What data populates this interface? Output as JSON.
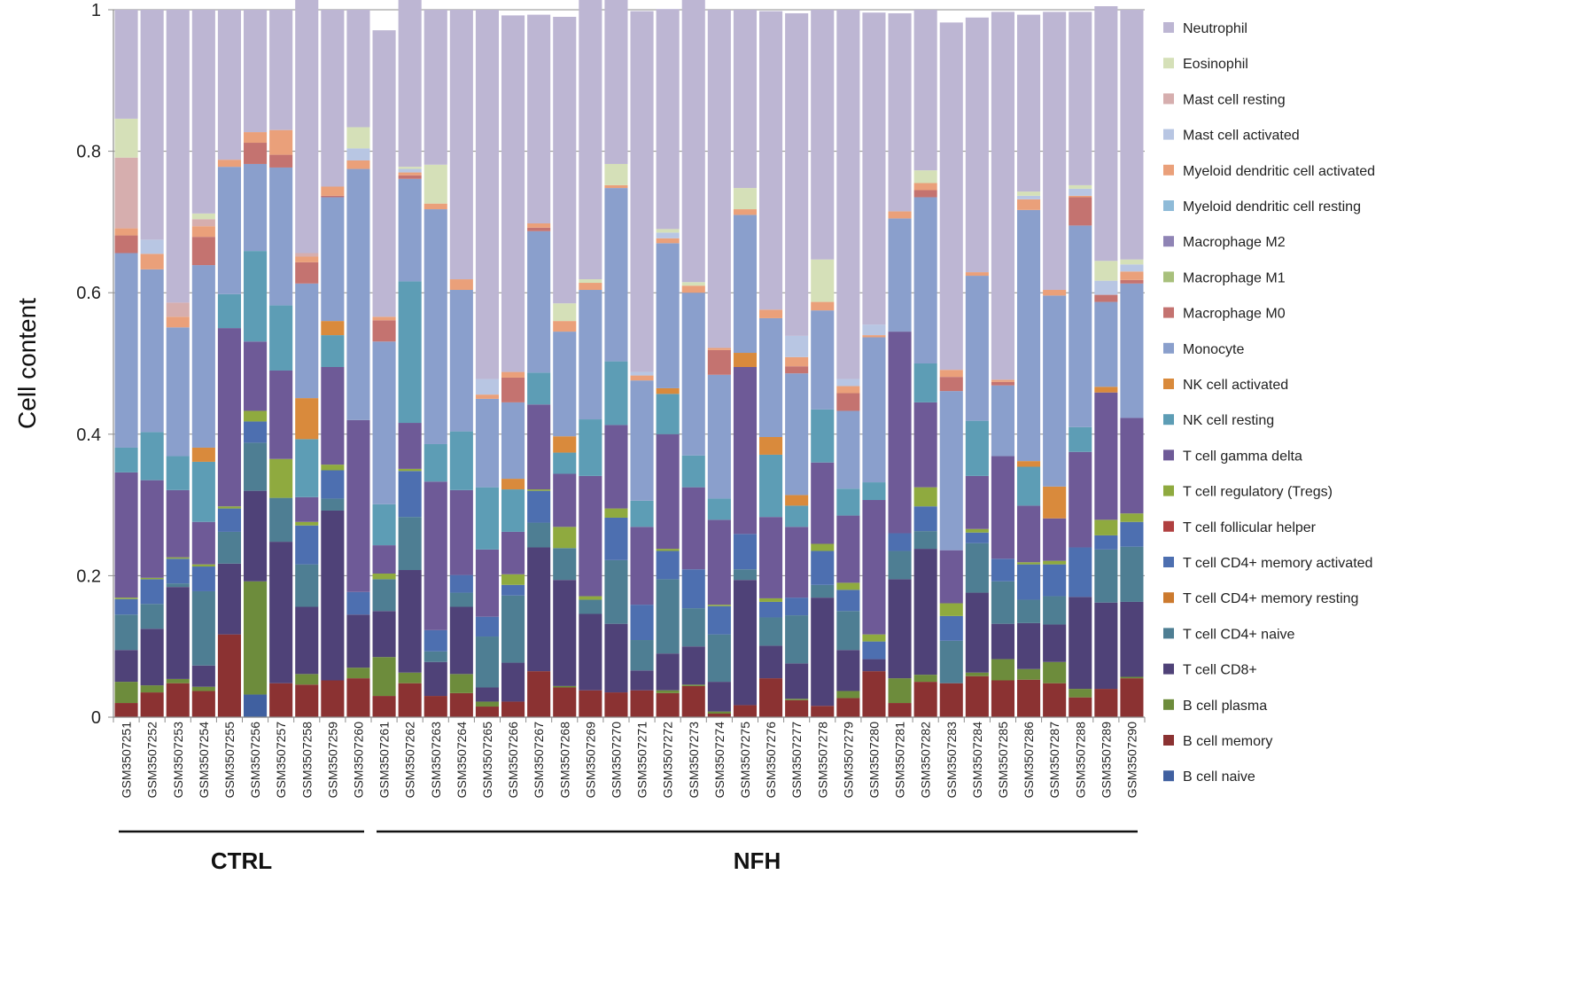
{
  "chart_data": {
    "type": "bar",
    "stacked": true,
    "ylabel": "Cell content",
    "ylim": [
      0,
      1
    ],
    "yticks": [
      0,
      0.2,
      0.4,
      0.6,
      0.8,
      1
    ],
    "grid": true,
    "legend_position": "right",
    "categories": [
      "GSM3507251",
      "GSM3507252",
      "GSM3507253",
      "GSM3507254",
      "GSM3507255",
      "GSM3507256",
      "GSM3507257",
      "GSM3507258",
      "GSM3507259",
      "GSM3507260",
      "GSM3507261",
      "GSM3507262",
      "GSM3507263",
      "GSM3507264",
      "GSM3507265",
      "GSM3507266",
      "GSM3507267",
      "GSM3507268",
      "GSM3507269",
      "GSM3507270",
      "GSM3507271",
      "GSM3507272",
      "GSM3507273",
      "GSM3507274",
      "GSM3507275",
      "GSM3507276",
      "GSM3507277",
      "GSM3507278",
      "GSM3507279",
      "GSM3507280",
      "GSM3507281",
      "GSM3507282",
      "GSM3507283",
      "GSM3507284",
      "GSM3507285",
      "GSM3507286",
      "GSM3507287",
      "GSM3507288",
      "GSM3507289",
      "GSM3507290"
    ],
    "groups": [
      {
        "label": "CTRL",
        "start": 0,
        "end": 9
      },
      {
        "label": "NFH",
        "start": 10,
        "end": 39
      }
    ],
    "series": [
      {
        "name": "B cell naive",
        "color": "#4060a0",
        "values": [
          0,
          0,
          0,
          0,
          0,
          0.032,
          0,
          0,
          0,
          0,
          0,
          0,
          0,
          0,
          0,
          0,
          0,
          0,
          0,
          0,
          0,
          0,
          0,
          0,
          0,
          0,
          0,
          0,
          0,
          0,
          0,
          0,
          0,
          0,
          0,
          0,
          0,
          0,
          0,
          0
        ]
      },
      {
        "name": "B cell memory",
        "color": "#8b3232",
        "values": [
          0.02,
          0.035,
          0.048,
          0.037,
          0.117,
          0,
          0.048,
          0.046,
          0.052,
          0.055,
          0.03,
          0.048,
          0.03,
          0.034,
          0.015,
          0.022,
          0.065,
          0.042,
          0.038,
          0.035,
          0.038,
          0.034,
          0.044,
          0.005,
          0.017,
          0.055,
          0.024,
          0.016,
          0.027,
          0.065,
          0.02,
          0.05,
          0.048,
          0.058,
          0.052,
          0.053,
          0.048,
          0.028,
          0.04,
          0.055
        ]
      },
      {
        "name": "B cell plasma",
        "color": "#6d8c3c",
        "values": [
          0.03,
          0.01,
          0.006,
          0.006,
          0,
          0.16,
          0,
          0.015,
          0,
          0.015,
          0.055,
          0.015,
          0,
          0.027,
          0.007,
          0,
          0,
          0.002,
          0,
          0,
          0,
          0.004,
          0.002,
          0.003,
          0,
          0,
          0.002,
          0,
          0.01,
          0,
          0.035,
          0.01,
          0,
          0.005,
          0.03,
          0.015,
          0.03,
          0.012,
          0,
          0.002
        ]
      },
      {
        "name": "T cell CD8+",
        "color": "#4f4278",
        "values": [
          0.045,
          0.08,
          0.13,
          0.03,
          0.1,
          0.128,
          0.2,
          0.095,
          0.24,
          0.075,
          0.065,
          0.145,
          0.048,
          0.095,
          0.02,
          0.055,
          0.175,
          0.15,
          0.108,
          0.097,
          0.028,
          0.052,
          0.054,
          0.042,
          0.177,
          0.046,
          0.05,
          0.153,
          0.058,
          0.017,
          0.14,
          0.178,
          0,
          0.113,
          0.05,
          0.065,
          0.053,
          0.13,
          0.122,
          0.106
        ]
      },
      {
        "name": "T cell CD4+ naive",
        "color": "#4e7e93",
        "values": [
          0.05,
          0.035,
          0.005,
          0.105,
          0.045,
          0.068,
          0.062,
          0.06,
          0.017,
          0,
          0.045,
          0.075,
          0.015,
          0.02,
          0.072,
          0.095,
          0.035,
          0.045,
          0.02,
          0.09,
          0.043,
          0.105,
          0.054,
          0.067,
          0.015,
          0.04,
          0.068,
          0.018,
          0.055,
          0,
          0.04,
          0.025,
          0.06,
          0.07,
          0.06,
          0.033,
          0.04,
          0,
          0.075,
          0.078
        ]
      },
      {
        "name": "T cell CD4+ memory resting",
        "color": "#cc7a2e",
        "values": [
          0,
          0,
          0,
          0,
          0,
          0,
          0,
          0,
          0,
          0,
          0,
          0,
          0,
          0,
          0,
          0,
          0,
          0,
          0,
          0,
          0,
          0,
          0,
          0,
          0,
          0,
          0,
          0,
          0,
          0,
          0,
          0,
          0,
          0,
          0,
          0,
          0,
          0,
          0,
          0
        ]
      },
      {
        "name": "T cell CD4+ memory activated",
        "color": "#4d6fb0",
        "values": [
          0.022,
          0.035,
          0.035,
          0.035,
          0.033,
          0.03,
          0,
          0.055,
          0.04,
          0.032,
          0,
          0.065,
          0.03,
          0.025,
          0.028,
          0.015,
          0.045,
          0,
          0,
          0.06,
          0.05,
          0.04,
          0.055,
          0.04,
          0.05,
          0.022,
          0.025,
          0.048,
          0.03,
          0.025,
          0.025,
          0.035,
          0.035,
          0.015,
          0.032,
          0.05,
          0.045,
          0.07,
          0.02,
          0.035
        ]
      },
      {
        "name": "T cell follicular helper",
        "color": "#b04040",
        "values": [
          0,
          0,
          0,
          0,
          0,
          0,
          0,
          0,
          0,
          0,
          0,
          0,
          0,
          0,
          0,
          0,
          0,
          0,
          0,
          0,
          0,
          0,
          0,
          0,
          0,
          0,
          0,
          0,
          0,
          0,
          0,
          0,
          0,
          0,
          0,
          0,
          0,
          0,
          0,
          0
        ]
      },
      {
        "name": "T cell regulatory (Tregs)",
        "color": "#8faa3f",
        "values": [
          0.002,
          0.002,
          0.002,
          0.003,
          0.003,
          0.015,
          0.055,
          0.005,
          0.008,
          0,
          0.008,
          0.003,
          0,
          0,
          0,
          0.015,
          0.002,
          0.03,
          0.005,
          0.013,
          0,
          0.003,
          0,
          0.002,
          0,
          0.005,
          0,
          0.01,
          0.01,
          0.01,
          0,
          0.027,
          0.018,
          0.005,
          0,
          0.003,
          0.005,
          0,
          0.022,
          0.012
        ]
      },
      {
        "name": "T cell gamma delta",
        "color": "#6e5a97",
        "values": [
          0.177,
          0.138,
          0.095,
          0.06,
          0.252,
          0.098,
          0.125,
          0.035,
          0.138,
          0.243,
          0.04,
          0.065,
          0.21,
          0.12,
          0.095,
          0.06,
          0.12,
          0.075,
          0.17,
          0.118,
          0.11,
          0.162,
          0.116,
          0.12,
          0.236,
          0.115,
          0.1,
          0.115,
          0.095,
          0.19,
          0.285,
          0.12,
          0.075,
          0.075,
          0.145,
          0.08,
          0.06,
          0.135,
          0.18,
          0.135
        ]
      },
      {
        "name": "NK cell resting",
        "color": "#5d9db5",
        "values": [
          0.035,
          0.068,
          0.048,
          0.085,
          0.048,
          0.128,
          0.092,
          0.082,
          0.045,
          0,
          0.058,
          0.2,
          0.053,
          0.083,
          0.088,
          0.06,
          0.045,
          0.03,
          0.08,
          0.09,
          0.037,
          0.057,
          0.045,
          0.03,
          0,
          0.088,
          0.03,
          0.075,
          0.038,
          0.025,
          0,
          0.055,
          0,
          0.078,
          0,
          0.055,
          0,
          0.035,
          0,
          0
        ]
      },
      {
        "name": "NK cell activated",
        "color": "#d98a3c",
        "values": [
          0,
          0,
          0,
          0.02,
          0,
          0,
          0,
          0.058,
          0.02,
          0,
          0,
          0,
          0,
          0,
          0,
          0.015,
          0,
          0.023,
          0,
          0,
          0,
          0.008,
          0,
          0,
          0.02,
          0.025,
          0.015,
          0,
          0,
          0,
          0,
          0,
          0,
          0,
          0,
          0.008,
          0.045,
          0,
          0.008,
          0
        ]
      },
      {
        "name": "Monocyte",
        "color": "#8a9fcc",
        "values": [
          0.275,
          0.23,
          0.182,
          0.258,
          0.18,
          0.123,
          0.195,
          0.162,
          0.175,
          0.355,
          0.23,
          0.145,
          0.332,
          0.2,
          0.125,
          0.108,
          0.2,
          0.148,
          0.183,
          0.245,
          0.17,
          0.205,
          0.23,
          0.175,
          0.195,
          0.168,
          0.172,
          0.14,
          0.11,
          0.205,
          0.16,
          0.235,
          0.225,
          0.205,
          0.1,
          0.355,
          0.27,
          0.285,
          0.12,
          0.19
        ]
      },
      {
        "name": "Macrophage M0",
        "color": "#c47370",
        "values": [
          0.025,
          0,
          0,
          0.04,
          0,
          0.03,
          0.018,
          0.03,
          0.002,
          0,
          0.03,
          0.005,
          0,
          0,
          0,
          0.035,
          0.005,
          0,
          0,
          0,
          0,
          0,
          0,
          0.035,
          0,
          0,
          0.01,
          0,
          0.025,
          0,
          0,
          0.01,
          0.02,
          0,
          0.005,
          0,
          0,
          0.04,
          0.01,
          0.005
        ]
      },
      {
        "name": "Macrophage M1",
        "color": "#a8c07c",
        "values": [
          0,
          0,
          0,
          0,
          0,
          0,
          0,
          0,
          0,
          0,
          0,
          0,
          0,
          0,
          0,
          0,
          0,
          0,
          0,
          0,
          0,
          0,
          0,
          0,
          0,
          0,
          0,
          0,
          0,
          0,
          0,
          0,
          0,
          0,
          0,
          0,
          0,
          0,
          0,
          0
        ]
      },
      {
        "name": "Macrophage M2",
        "color": "#8f84b5",
        "values": [
          0,
          0,
          0,
          0,
          0,
          0,
          0,
          0,
          0,
          0,
          0,
          0,
          0,
          0,
          0,
          0,
          0,
          0,
          0,
          0,
          0,
          0,
          0,
          0,
          0,
          0,
          0,
          0,
          0,
          0,
          0,
          0,
          0,
          0,
          0,
          0,
          0,
          0,
          0,
          0
        ]
      },
      {
        "name": "Myeloid dendritic cell resting",
        "color": "#8fbbd8",
        "values": [
          0,
          0,
          0,
          0,
          0,
          0,
          0,
          0,
          0,
          0,
          0,
          0,
          0,
          0,
          0,
          0,
          0,
          0,
          0,
          0,
          0,
          0,
          0,
          0,
          0,
          0,
          0,
          0,
          0,
          0,
          0,
          0,
          0,
          0,
          0,
          0,
          0,
          0,
          0,
          0
        ]
      },
      {
        "name": "Myeloid dendritic cell activated",
        "color": "#eaa07a",
        "values": [
          0.01,
          0.022,
          0.015,
          0.015,
          0.01,
          0.015,
          0.035,
          0.008,
          0.013,
          0.012,
          0.005,
          0.004,
          0.008,
          0.015,
          0.006,
          0.008,
          0.006,
          0.015,
          0.01,
          0.004,
          0.007,
          0.007,
          0.01,
          0.003,
          0.008,
          0.012,
          0.013,
          0.012,
          0.01,
          0.003,
          0.01,
          0.01,
          0.01,
          0.005,
          0.003,
          0.015,
          0.008,
          0.002,
          0,
          0.012
        ]
      },
      {
        "name": "Mast cell activated",
        "color": "#b8c6e3",
        "values": [
          0,
          0.02,
          0,
          0,
          0,
          0,
          0,
          0,
          0,
          0.017,
          0,
          0.005,
          0,
          0,
          0.022,
          0,
          0,
          0,
          0,
          0,
          0.005,
          0.008,
          0,
          0,
          0,
          0,
          0.03,
          0,
          0.01,
          0.015,
          0,
          0,
          0,
          0,
          0,
          0.005,
          0,
          0.01,
          0.02,
          0.01
        ]
      },
      {
        "name": "Mast cell resting",
        "color": "#d6aeae",
        "values": [
          0.1,
          0,
          0.02,
          0.01,
          0,
          0,
          0,
          0.005,
          0,
          0,
          0,
          0,
          0,
          0,
          0,
          0,
          0,
          0,
          0,
          0,
          0,
          0,
          0,
          0,
          0,
          0,
          0,
          0,
          0,
          0,
          0,
          0,
          0,
          0,
          0,
          0,
          0,
          0,
          0,
          0
        ]
      },
      {
        "name": "Eosinophil",
        "color": "#d5e0b8",
        "values": [
          0.055,
          0,
          0,
          0.008,
          0,
          0,
          0,
          0,
          0,
          0.03,
          0,
          0.003,
          0.055,
          0,
          0,
          0,
          0,
          0.025,
          0.005,
          0.03,
          0,
          0.005,
          0.005,
          0,
          0.03,
          0,
          0,
          0.06,
          0,
          0,
          0,
          0.018,
          0,
          0,
          0,
          0.006,
          0,
          0.005,
          0.028,
          0.007
        ]
      },
      {
        "name": "Neutrophil",
        "color": "#bdb6d3",
        "values": [
          0.154,
          0.325,
          0.414,
          0.288,
          0.212,
          0.173,
          0.17,
          0.4,
          0.25,
          0.166,
          0.405,
          0.282,
          0.219,
          0.381,
          0.522,
          0.504,
          0.295,
          0.405,
          0.457,
          0.296,
          0.51,
          0.311,
          0.435,
          0.478,
          0.252,
          0.422,
          0.456,
          0.353,
          0.522,
          0.441,
          0.28,
          0.227,
          0.491,
          0.36,
          0.52,
          0.25,
          0.393,
          0.245,
          0.36,
          0.353
        ]
      }
    ]
  }
}
